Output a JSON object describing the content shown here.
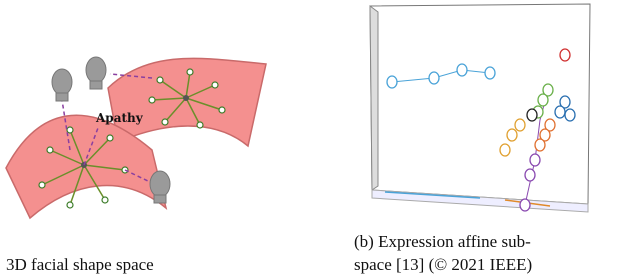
{
  "figure": {
    "left_panel": {
      "annotation": "Apathy",
      "caption": "3D facial shape space"
    },
    "right_panel": {
      "caption_lines": [
        "(b) Expression affine sub-",
        "space [13] (© 2021 IEEE)"
      ]
    }
  }
}
